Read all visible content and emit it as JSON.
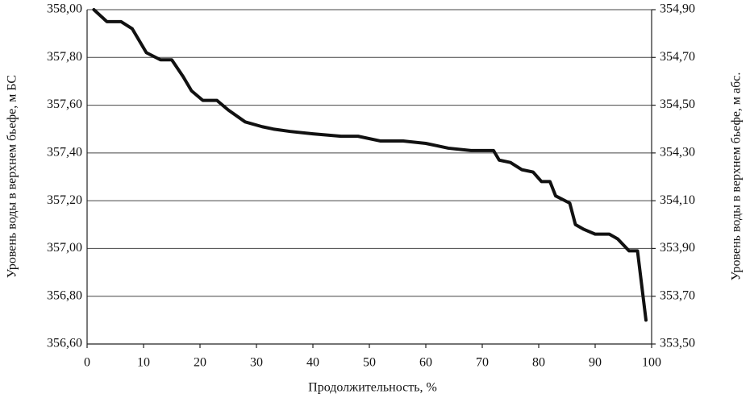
{
  "chart_data": {
    "type": "line",
    "xlabel": "Продолжительность, %",
    "ylabel": "Уровень воды в верхнем бьефе, м БС",
    "y2label": "Уровень воды в верхнем бьефе, м  абс.",
    "x": [
      1.2,
      3.5,
      6,
      8,
      10.5,
      13,
      15,
      17,
      18.5,
      20.5,
      23,
      25,
      28,
      31,
      33,
      36,
      40,
      45,
      48,
      52,
      56,
      60,
      62,
      64,
      68,
      72,
      73,
      75,
      77,
      79,
      80.5,
      82,
      83,
      85.5,
      86.5,
      88,
      90,
      92.5,
      94,
      96,
      97.5,
      99
    ],
    "series": [
      {
        "color": "#111111",
        "values": [
          358.0,
          357.95,
          357.95,
          357.92,
          357.82,
          357.79,
          357.79,
          357.72,
          357.66,
          357.62,
          357.62,
          357.58,
          357.53,
          357.51,
          357.5,
          357.49,
          357.48,
          357.47,
          357.47,
          357.45,
          357.45,
          357.44,
          357.43,
          357.42,
          357.41,
          357.41,
          357.37,
          357.36,
          357.33,
          357.32,
          357.28,
          357.28,
          357.22,
          357.19,
          357.1,
          357.08,
          357.06,
          357.06,
          357.04,
          356.99,
          356.99,
          356.7
        ]
      }
    ],
    "xlim": [
      0,
      100
    ],
    "xticks": [
      0,
      10,
      20,
      30,
      40,
      50,
      60,
      70,
      80,
      90,
      100
    ],
    "ylim": [
      356.6,
      358.0
    ],
    "yticks": [
      {
        "value": 356.6,
        "label": "356,60"
      },
      {
        "value": 356.8,
        "label": "356,80"
      },
      {
        "value": 357.0,
        "label": "357,00"
      },
      {
        "value": 357.2,
        "label": "357,20"
      },
      {
        "value": 357.4,
        "label": "357,40"
      },
      {
        "value": 357.6,
        "label": "357,60"
      },
      {
        "value": 357.8,
        "label": "357,80"
      },
      {
        "value": 358.0,
        "label": "358,00"
      }
    ],
    "y2lim": [
      353.5,
      354.9
    ],
    "y2ticks": [
      {
        "value": 353.5,
        "label": "353,50"
      },
      {
        "value": 353.7,
        "label": "353,70"
      },
      {
        "value": 353.9,
        "label": "353,90"
      },
      {
        "value": 354.1,
        "label": "354,10"
      },
      {
        "value": 354.3,
        "label": "354,30"
      },
      {
        "value": 354.5,
        "label": "354,50"
      },
      {
        "value": 354.7,
        "label": "354,70"
      },
      {
        "value": 354.9,
        "label": "354,90"
      }
    ],
    "grid": true
  }
}
